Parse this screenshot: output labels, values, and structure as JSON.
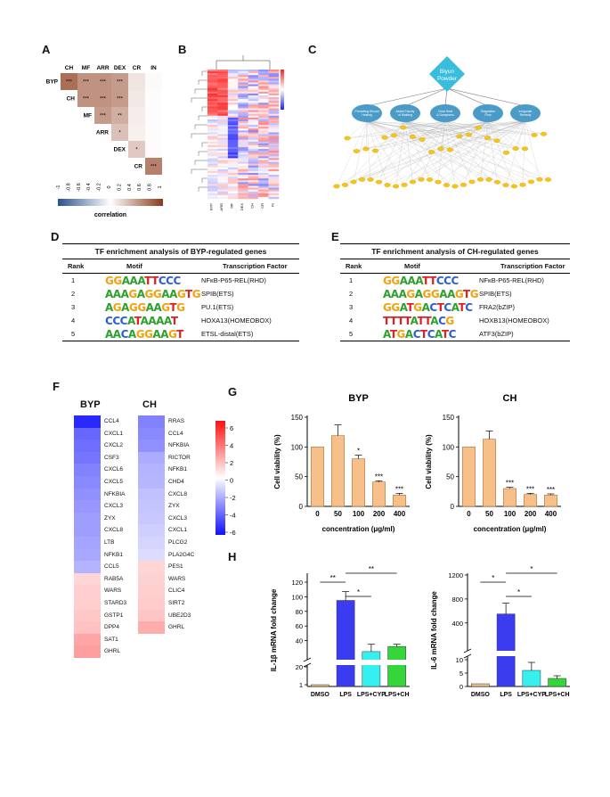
{
  "panels": {
    "A": "A",
    "B": "B",
    "C": "C",
    "D": "D",
    "E": "E",
    "F": "F",
    "G": "G",
    "H": "H"
  },
  "panelA": {
    "cols": [
      "CH",
      "MF",
      "ARR",
      "DEX",
      "CR",
      "IN"
    ],
    "rows": [
      "BYP",
      "CH",
      "MF",
      "ARR",
      "DEX",
      "CR"
    ],
    "cells": [
      {
        "r": 0,
        "c": 0,
        "v": 0.8,
        "s": "***"
      },
      {
        "r": 0,
        "c": 1,
        "v": 0.6,
        "s": "***"
      },
      {
        "r": 0,
        "c": 2,
        "v": 0.6,
        "s": "***"
      },
      {
        "r": 0,
        "c": 3,
        "v": 0.55,
        "s": "***"
      },
      {
        "r": 0,
        "c": 4,
        "v": 0.15,
        "s": ""
      },
      {
        "r": 0,
        "c": 5,
        "v": 0.03,
        "s": ""
      },
      {
        "r": 1,
        "c": 1,
        "v": 0.6,
        "s": "***"
      },
      {
        "r": 1,
        "c": 2,
        "v": 0.6,
        "s": "***"
      },
      {
        "r": 1,
        "c": 3,
        "v": 0.55,
        "s": "***"
      },
      {
        "r": 1,
        "c": 4,
        "v": 0.12,
        "s": ""
      },
      {
        "r": 1,
        "c": 5,
        "v": 0.02,
        "s": ""
      },
      {
        "r": 2,
        "c": 2,
        "v": 0.55,
        "s": "***"
      },
      {
        "r": 2,
        "c": 3,
        "v": 0.45,
        "s": "**"
      },
      {
        "r": 2,
        "c": 4,
        "v": 0.1,
        "s": ""
      },
      {
        "r": 2,
        "c": 5,
        "v": 0.02,
        "s": ""
      },
      {
        "r": 3,
        "c": 3,
        "v": 0.35,
        "s": "*"
      },
      {
        "r": 3,
        "c": 4,
        "v": 0.08,
        "s": ""
      },
      {
        "r": 3,
        "c": 5,
        "v": 0.02,
        "s": ""
      },
      {
        "r": 4,
        "c": 4,
        "v": 0.3,
        "s": "*"
      },
      {
        "r": 4,
        "c": 5,
        "v": 0.02,
        "s": ""
      },
      {
        "r": 5,
        "c": 5,
        "v": 0.7,
        "s": "***"
      }
    ],
    "scale_ticks": [
      "-1",
      "-0.8",
      "-0.6",
      "-0.4",
      "-0.2",
      "0",
      "0.2",
      "0.4",
      "0.6",
      "0.8",
      "1"
    ],
    "scale_label": "correlation"
  },
  "panelB": {
    "cols": [
      "BYP",
      "ARR",
      "MF",
      "DEX",
      "CH",
      "CR",
      "IN"
    ]
  },
  "panelC": {
    "top": "Biyun Powder",
    "nodes": [
      "Promoting Wound Healing",
      "Assist Faculty of Walking",
      "Clear Heat & Dampness",
      "Stagnation Flow",
      "Invigorate Remedy"
    ]
  },
  "panelD": {
    "title": "TF enrichment analysis of BYP-regulated genes",
    "headers": [
      "Rank",
      "Motif",
      "Transcription Factor"
    ],
    "rows": [
      {
        "rank": "1",
        "motif": "GGAAATTCCC",
        "tf": "NFκB-P65-REL(RHD)"
      },
      {
        "rank": "2",
        "motif": "AAAGAGGAAGTG",
        "tf": "SPIB(ETS)"
      },
      {
        "rank": "3",
        "motif": "AGAGGAAGTG",
        "tf": "PU.1(ETS)"
      },
      {
        "rank": "4",
        "motif": "CCCATAAAAT",
        "tf": "HOXA13(HOMEOBOX)"
      },
      {
        "rank": "5",
        "motif": "AACAGGAAGT",
        "tf": "ETSL-distal(ETS)"
      }
    ]
  },
  "panelE": {
    "title": "TF enrichment analysis of CH-regulated genes",
    "headers": [
      "Rank",
      "Motif",
      "Transcription Factor"
    ],
    "rows": [
      {
        "rank": "1",
        "motif": "GGAAATTCCC",
        "tf": "NFκB-P65-REL(RHD)"
      },
      {
        "rank": "2",
        "motif": "AAAGAGGAAGTG",
        "tf": "SPIB(ETS)"
      },
      {
        "rank": "3",
        "motif": "GGATGACTCATC",
        "tf": "FRA2(bZIP)"
      },
      {
        "rank": "4",
        "motif": "TTTTATTACG",
        "tf": "HOXB13(HOMEOBOX)"
      },
      {
        "rank": "5",
        "motif": "ATGACTCATC",
        "tf": "ATF3(bZIP)"
      }
    ]
  },
  "panelF": {
    "byp_title": "BYP",
    "ch_title": "CH",
    "byp": [
      {
        "g": "CCL4",
        "v": -6.2
      },
      {
        "g": "CXCL1",
        "v": -4.4
      },
      {
        "g": "CXCL2",
        "v": -4.2
      },
      {
        "g": "CSF3",
        "v": -4.0
      },
      {
        "g": "CXCL6",
        "v": -3.6
      },
      {
        "g": "CXCL5",
        "v": -3.4
      },
      {
        "g": "NFKBIA",
        "v": -3.2
      },
      {
        "g": "CXCL3",
        "v": -3.0
      },
      {
        "g": "ZYX",
        "v": -2.8
      },
      {
        "g": "CXCL8",
        "v": -2.8
      },
      {
        "g": "LTB",
        "v": -2.6
      },
      {
        "g": "NFKB1",
        "v": -2.5
      },
      {
        "g": "CCL5",
        "v": -2.2
      },
      {
        "g": "RAB5A",
        "v": 1.2
      },
      {
        "g": "WARS",
        "v": 1.4
      },
      {
        "g": "STARD3",
        "v": 1.4
      },
      {
        "g": "GSTP1",
        "v": 1.6
      },
      {
        "g": "DPP4",
        "v": 1.8
      },
      {
        "g": "SAT1",
        "v": 2.6
      },
      {
        "g": "GHRL",
        "v": 2.8
      }
    ],
    "ch": [
      {
        "g": "RRAS",
        "v": -3.6
      },
      {
        "g": "CCL4",
        "v": -3.4
      },
      {
        "g": "NFKBIA",
        "v": -3.2
      },
      {
        "g": "RICTOR",
        "v": -2.4
      },
      {
        "g": "NFKB1",
        "v": -2.2
      },
      {
        "g": "CHD4",
        "v": -2.1
      },
      {
        "g": "CXCL8",
        "v": -1.8
      },
      {
        "g": "ZYX",
        "v": -1.7
      },
      {
        "g": "CXCL3",
        "v": -1.6
      },
      {
        "g": "CXCL1",
        "v": -1.4
      },
      {
        "g": "PLCG2",
        "v": -1.2
      },
      {
        "g": "PLA2G4C",
        "v": -1.0
      },
      {
        "g": "PES1",
        "v": 1.2
      },
      {
        "g": "WARS",
        "v": 1.3
      },
      {
        "g": "CLIC4",
        "v": 1.4
      },
      {
        "g": "SIRT2",
        "v": 1.5
      },
      {
        "g": "UBE2D3",
        "v": 1.7
      },
      {
        "g": "GHRL",
        "v": 2.4
      }
    ],
    "scale_ticks": [
      "6",
      "4",
      "2",
      "0",
      "-2",
      "-4",
      "-6"
    ]
  },
  "chart_data": [
    {
      "type": "bar",
      "title": "BYP",
      "xlabel": "concentration  (μg/ml)",
      "ylabel": "Cell viability (%)",
      "categories": [
        "0",
        "50",
        "100",
        "200",
        "400"
      ],
      "values": [
        100,
        119,
        80,
        41,
        19
      ],
      "errors": [
        0,
        18,
        6,
        2,
        3
      ],
      "sig": [
        "",
        "",
        "*",
        "***",
        "***"
      ],
      "ylim": [
        0,
        150
      ],
      "yticks": [
        "0",
        "50",
        "100",
        "150"
      ]
    },
    {
      "type": "bar",
      "title": "CH",
      "xlabel": "concentration  (μg/ml)",
      "ylabel": "Cell viability (%)",
      "categories": [
        "0",
        "50",
        "100",
        "200",
        "400"
      ],
      "values": [
        100,
        113,
        30,
        20,
        19
      ],
      "errors": [
        0,
        14,
        2,
        2,
        2
      ],
      "sig": [
        "",
        "",
        "***",
        "***",
        "***"
      ],
      "ylim": [
        0,
        150
      ],
      "yticks": [
        "0",
        "50",
        "100",
        "150"
      ]
    },
    {
      "type": "bar",
      "title": "",
      "xlabel": "",
      "ylabel": "IL-1β mRNA fold change",
      "categories": [
        "DMSO",
        "LPS",
        "LPS+CYP",
        "LPS+CH"
      ],
      "values": [
        1,
        95,
        25,
        32
      ],
      "errors": [
        0,
        12,
        10,
        3
      ],
      "yticks": [
        "1",
        "20",
        "40",
        "60",
        "80",
        "100",
        "120"
      ],
      "comparisons": [
        {
          "label": "**",
          "a": "DMSO",
          "b": "LPS"
        },
        {
          "label": "*",
          "a": "LPS",
          "b": "LPS+CYP"
        },
        {
          "label": "**",
          "a": "LPS",
          "b": "LPS+CH"
        }
      ]
    },
    {
      "type": "bar",
      "title": "",
      "xlabel": "",
      "ylabel": "IL-6 mRNA fold change",
      "categories": [
        "DMSO",
        "LPS",
        "LPS+CYP",
        "LPS+CH"
      ],
      "values": [
        1,
        550,
        6,
        3
      ],
      "errors": [
        0,
        180,
        3,
        1
      ],
      "yticks": [
        "0",
        "5",
        "10",
        "400",
        "800",
        "1200"
      ],
      "comparisons": [
        {
          "label": "*",
          "a": "DMSO",
          "b": "LPS"
        },
        {
          "label": "*",
          "a": "LPS",
          "b": "LPS+CYP"
        },
        {
          "label": "*",
          "a": "LPS",
          "b": "LPS+CH"
        }
      ]
    }
  ],
  "colors": {
    "orange": "#F7C08A",
    "blue": "#3B3BF0",
    "cyan": "#36F0F0",
    "green": "#34D63A",
    "node": "#4A9BC7",
    "teal": "#38BEDC",
    "yellow": "#F5C518"
  }
}
